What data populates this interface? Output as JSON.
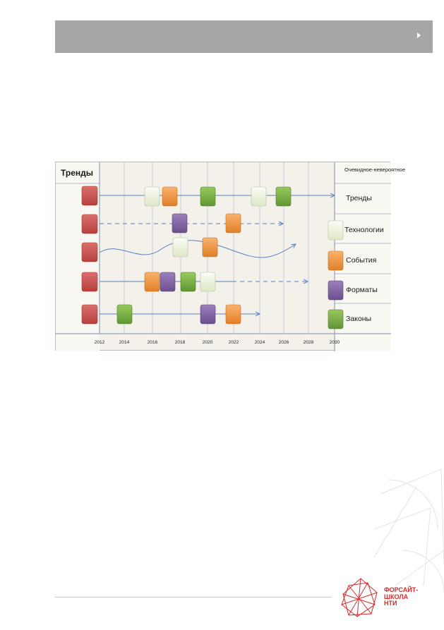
{
  "roadmap": {
    "trends_heading": "Тренды",
    "corner_note": "Очевидное-невероятное",
    "years": [
      "2012",
      "2014",
      "2016",
      "2018",
      "2020",
      "2022",
      "2024",
      "2026",
      "2028",
      "2030"
    ],
    "legend": [
      "Тренды",
      "Технологии",
      "События",
      "Форматы",
      "Законы"
    ]
  },
  "colors": {
    "trend": "#c0504d",
    "technology": "#ebf1de",
    "event": "#f79646",
    "format": "#8064a2",
    "law": "#76b041",
    "header_bar": "#a6a6a6",
    "brand_red": "#d62a2a"
  },
  "logo": {
    "line1": "ФОРСАЙТ-",
    "line2": "ШКОЛА",
    "line3": "НТИ"
  }
}
